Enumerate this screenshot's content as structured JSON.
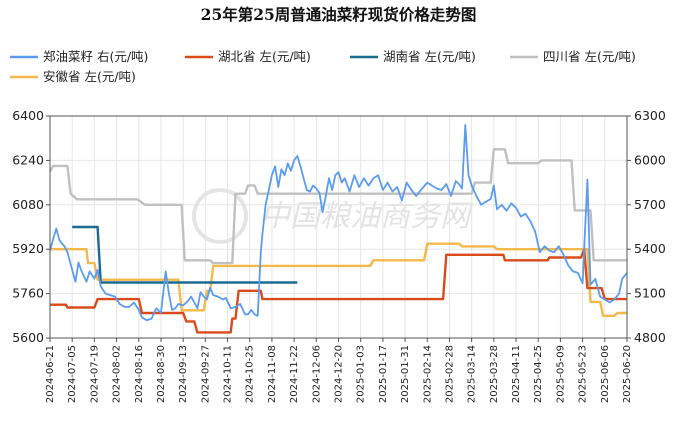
{
  "chart_data": {
    "type": "line",
    "title": "25年第25周普通油菜籽现货价格走势图",
    "watermark": "中国粮油商务网",
    "left_axis": {
      "ylim": [
        5600,
        6400
      ],
      "ticks": [
        "5600",
        "5760",
        "5920",
        "6080",
        "6240",
        "6400"
      ]
    },
    "right_axis": {
      "ylim": [
        4800,
        6300
      ],
      "ticks": [
        "4800",
        "5100",
        "5400",
        "5700",
        "6000",
        "6300"
      ]
    },
    "x_ticks": [
      "2024-06-21",
      "2024-07-05",
      "2024-07-19",
      "2024-08-02",
      "2024-08-16",
      "2024-08-30",
      "2024-09-13",
      "2024-09-27",
      "2024-10-11",
      "2024-10-25",
      "2024-11-08",
      "2024-11-22",
      "2024-12-06",
      "2024-12-20",
      "2025-01-03",
      "2025-01-17",
      "2025-01-31",
      "2025-02-14",
      "2025-02-28",
      "2025-03-14",
      "2025-03-28",
      "2025-04-11",
      "2025-04-25",
      "2025-05-09",
      "2025-05-23",
      "2025-06-06",
      "2025-06-20"
    ],
    "series": [
      {
        "name": "郑油菜籽 右(元/吨)",
        "axis": "right",
        "color": "#5b9bf0",
        "points": [
          [
            "2024-06-21",
            5390
          ],
          [
            "2024-06-23",
            5470
          ],
          [
            "2024-06-25",
            5540
          ],
          [
            "2024-06-27",
            5460
          ],
          [
            "2024-06-30",
            5420
          ],
          [
            "2024-07-02",
            5380
          ],
          [
            "2024-07-05",
            5260
          ],
          [
            "2024-07-07",
            5180
          ],
          [
            "2024-07-09",
            5310
          ],
          [
            "2024-07-11",
            5250
          ],
          [
            "2024-07-14",
            5180
          ],
          [
            "2024-07-16",
            5250
          ],
          [
            "2024-07-19",
            5200
          ],
          [
            "2024-07-21",
            5260
          ],
          [
            "2024-07-23",
            5150
          ],
          [
            "2024-07-26",
            5100
          ],
          [
            "2024-07-29",
            5090
          ],
          [
            "2024-08-01",
            5080
          ],
          [
            "2024-08-04",
            5030
          ],
          [
            "2024-08-07",
            5010
          ],
          [
            "2024-08-10",
            5010
          ],
          [
            "2024-08-13",
            5040
          ],
          [
            "2024-08-16",
            4990
          ],
          [
            "2024-08-18",
            4940
          ],
          [
            "2024-08-21",
            4920
          ],
          [
            "2024-08-24",
            4930
          ],
          [
            "2024-08-27",
            5000
          ],
          [
            "2024-08-30",
            4970
          ],
          [
            "2024-09-02",
            5250
          ],
          [
            "2024-09-04",
            5100
          ],
          [
            "2024-09-06",
            4990
          ],
          [
            "2024-09-08",
            5000
          ],
          [
            "2024-09-10",
            5030
          ],
          [
            "2024-09-13",
            5020
          ],
          [
            "2024-09-16",
            5050
          ],
          [
            "2024-09-18",
            5080
          ],
          [
            "2024-09-20",
            5040
          ],
          [
            "2024-09-22",
            5000
          ],
          [
            "2024-09-24",
            5110
          ],
          [
            "2024-09-26",
            5080
          ],
          [
            "2024-09-28",
            5060
          ],
          [
            "2024-09-30",
            5140
          ],
          [
            "2024-10-02",
            5090
          ],
          [
            "2024-10-05",
            5080
          ],
          [
            "2024-10-08",
            5060
          ],
          [
            "2024-10-10",
            5070
          ],
          [
            "2024-10-13",
            5000
          ],
          [
            "2024-10-16",
            5010
          ],
          [
            "2024-10-19",
            5030
          ],
          [
            "2024-10-22",
            4960
          ],
          [
            "2024-10-24",
            4960
          ],
          [
            "2024-10-26",
            4990
          ],
          [
            "2024-10-28",
            4960
          ],
          [
            "2024-10-30",
            4950
          ],
          [
            "2024-11-01",
            5380
          ],
          [
            "2024-11-02",
            5500
          ],
          [
            "2024-11-04",
            5700
          ],
          [
            "2024-11-06",
            5800
          ],
          [
            "2024-11-08",
            5900
          ],
          [
            "2024-11-10",
            5960
          ],
          [
            "2024-11-12",
            5820
          ],
          [
            "2024-11-14",
            5940
          ],
          [
            "2024-11-16",
            5900
          ],
          [
            "2024-11-18",
            5980
          ],
          [
            "2024-11-20",
            5930
          ],
          [
            "2024-11-22",
            6000
          ],
          [
            "2024-11-24",
            6030
          ],
          [
            "2024-11-26",
            5960
          ],
          [
            "2024-11-28",
            5880
          ],
          [
            "2024-11-30",
            5800
          ],
          [
            "2024-12-02",
            5790
          ],
          [
            "2024-12-04",
            5830
          ],
          [
            "2024-12-06",
            5810
          ],
          [
            "2024-12-08",
            5780
          ],
          [
            "2024-12-10",
            5650
          ],
          [
            "2024-12-12",
            5760
          ],
          [
            "2024-12-14",
            5880
          ],
          [
            "2024-12-16",
            5800
          ],
          [
            "2024-12-18",
            5900
          ],
          [
            "2024-12-20",
            5920
          ],
          [
            "2024-12-22",
            5850
          ],
          [
            "2024-12-24",
            5880
          ],
          [
            "2024-12-27",
            5790
          ],
          [
            "2024-12-30",
            5900
          ],
          [
            "2025-01-02",
            5820
          ],
          [
            "2025-01-05",
            5880
          ],
          [
            "2025-01-08",
            5830
          ],
          [
            "2025-01-11",
            5880
          ],
          [
            "2025-01-14",
            5900
          ],
          [
            "2025-01-17",
            5800
          ],
          [
            "2025-01-20",
            5850
          ],
          [
            "2025-01-23",
            5790
          ],
          [
            "2025-01-26",
            5820
          ],
          [
            "2025-01-29",
            5730
          ],
          [
            "2025-02-01",
            5850
          ],
          [
            "2025-02-04",
            5800
          ],
          [
            "2025-02-07",
            5760
          ],
          [
            "2025-02-10",
            5800
          ],
          [
            "2025-02-14",
            5850
          ],
          [
            "2025-02-17",
            5830
          ],
          [
            "2025-02-20",
            5810
          ],
          [
            "2025-02-23",
            5800
          ],
          [
            "2025-02-26",
            5840
          ],
          [
            "2025-03-01",
            5760
          ],
          [
            "2025-03-04",
            5860
          ],
          [
            "2025-03-06",
            5840
          ],
          [
            "2025-03-08",
            5810
          ],
          [
            "2025-03-10",
            6240
          ],
          [
            "2025-03-12",
            5900
          ],
          [
            "2025-03-14",
            5830
          ],
          [
            "2025-03-17",
            5760
          ],
          [
            "2025-03-20",
            5700
          ],
          [
            "2025-03-23",
            5720
          ],
          [
            "2025-03-26",
            5740
          ],
          [
            "2025-03-28",
            5830
          ],
          [
            "2025-03-30",
            5670
          ],
          [
            "2025-04-02",
            5700
          ],
          [
            "2025-04-05",
            5660
          ],
          [
            "2025-04-08",
            5710
          ],
          [
            "2025-04-11",
            5680
          ],
          [
            "2025-04-14",
            5620
          ],
          [
            "2025-04-17",
            5640
          ],
          [
            "2025-04-20",
            5590
          ],
          [
            "2025-04-23",
            5520
          ],
          [
            "2025-04-26",
            5380
          ],
          [
            "2025-04-29",
            5420
          ],
          [
            "2025-05-02",
            5390
          ],
          [
            "2025-05-05",
            5380
          ],
          [
            "2025-05-08",
            5420
          ],
          [
            "2025-05-11",
            5360
          ],
          [
            "2025-05-14",
            5290
          ],
          [
            "2025-05-17",
            5250
          ],
          [
            "2025-05-20",
            5240
          ],
          [
            "2025-05-23",
            5170
          ],
          [
            "2025-05-26",
            5870
          ],
          [
            "2025-05-28",
            5160
          ],
          [
            "2025-05-31",
            5200
          ],
          [
            "2025-06-03",
            5080
          ],
          [
            "2025-06-06",
            5060
          ],
          [
            "2025-06-09",
            5040
          ],
          [
            "2025-06-12",
            5060
          ],
          [
            "2025-06-15",
            5100
          ],
          [
            "2025-06-17",
            5200
          ],
          [
            "2025-06-20",
            5240
          ]
        ]
      },
      {
        "name": "湖北省 左(元/吨)",
        "axis": "left",
        "color": "#d94b1a",
        "points": [
          [
            "2024-06-21",
            5720
          ],
          [
            "2024-07-01",
            5720
          ],
          [
            "2024-07-02",
            5710
          ],
          [
            "2024-07-19",
            5710
          ],
          [
            "2024-07-21",
            5740
          ],
          [
            "2024-08-16",
            5740
          ],
          [
            "2024-08-18",
            5690
          ],
          [
            "2024-09-13",
            5690
          ],
          [
            "2024-09-15",
            5660
          ],
          [
            "2024-09-20",
            5660
          ],
          [
            "2024-09-22",
            5620
          ],
          [
            "2024-10-13",
            5620
          ],
          [
            "2024-10-14",
            5670
          ],
          [
            "2024-10-16",
            5670
          ],
          [
            "2024-10-18",
            5770
          ],
          [
            "2024-11-01",
            5770
          ],
          [
            "2024-11-02",
            5740
          ],
          [
            "2025-02-24",
            5740
          ],
          [
            "2025-02-26",
            5900
          ],
          [
            "2025-04-03",
            5900
          ],
          [
            "2025-04-04",
            5880
          ],
          [
            "2025-05-01",
            5880
          ],
          [
            "2025-05-02",
            5890
          ],
          [
            "2025-05-22",
            5890
          ],
          [
            "2025-05-24",
            5920
          ],
          [
            "2025-05-26",
            5780
          ],
          [
            "2025-06-04",
            5780
          ],
          [
            "2025-06-06",
            5740
          ],
          [
            "2025-06-20",
            5740
          ]
        ]
      },
      {
        "name": "湖南省 左(元/吨)",
        "axis": "left",
        "color": "#1c6a8f",
        "points": [
          [
            "2024-07-05",
            6000
          ],
          [
            "2024-07-21",
            6000
          ],
          [
            "2024-07-23",
            5800
          ],
          [
            "2024-11-24",
            5800
          ]
        ]
      },
      {
        "name": "四川省 左(元/吨)",
        "axis": "left",
        "color": "#c0c0c0",
        "points": [
          [
            "2024-06-21",
            6200
          ],
          [
            "2024-06-23",
            6220
          ],
          [
            "2024-07-02",
            6220
          ],
          [
            "2024-07-04",
            6120
          ],
          [
            "2024-07-08",
            6100
          ],
          [
            "2024-08-15",
            6100
          ],
          [
            "2024-08-20",
            6080
          ],
          [
            "2024-09-12",
            6080
          ],
          [
            "2024-09-14",
            5880
          ],
          [
            "2024-09-30",
            5880
          ],
          [
            "2024-10-02",
            5870
          ],
          [
            "2024-10-14",
            5870
          ],
          [
            "2024-10-16",
            6120
          ],
          [
            "2024-10-22",
            6120
          ],
          [
            "2024-10-24",
            6150
          ],
          [
            "2024-10-28",
            6150
          ],
          [
            "2024-10-30",
            6120
          ],
          [
            "2025-03-14",
            6120
          ],
          [
            "2025-03-16",
            6160
          ],
          [
            "2025-03-26",
            6160
          ],
          [
            "2025-03-28",
            6280
          ],
          [
            "2025-04-04",
            6280
          ],
          [
            "2025-04-06",
            6230
          ],
          [
            "2025-04-25",
            6230
          ],
          [
            "2025-04-27",
            6240
          ],
          [
            "2025-05-16",
            6240
          ],
          [
            "2025-05-18",
            6060
          ],
          [
            "2025-05-28",
            6060
          ],
          [
            "2025-05-30",
            5880
          ],
          [
            "2025-06-20",
            5880
          ]
        ]
      },
      {
        "name": "安徽省 左(元/吨)",
        "axis": "left",
        "color": "#f5b84a",
        "points": [
          [
            "2024-06-21",
            5920
          ],
          [
            "2024-07-14",
            5920
          ],
          [
            "2024-07-15",
            5870
          ],
          [
            "2024-07-19",
            5870
          ],
          [
            "2024-07-21",
            5810
          ],
          [
            "2024-09-10",
            5810
          ],
          [
            "2024-09-12",
            5700
          ],
          [
            "2024-09-26",
            5700
          ],
          [
            "2024-09-28",
            5770
          ],
          [
            "2024-09-30",
            5770
          ],
          [
            "2024-10-02",
            5860
          ],
          [
            "2024-12-19",
            5860
          ],
          [
            "2024-12-22",
            5860
          ],
          [
            "2025-01-09",
            5860
          ],
          [
            "2025-01-11",
            5880
          ],
          [
            "2025-02-12",
            5880
          ],
          [
            "2025-02-14",
            5940
          ],
          [
            "2025-03-06",
            5940
          ],
          [
            "2025-03-08",
            5930
          ],
          [
            "2025-03-28",
            5930
          ],
          [
            "2025-03-30",
            5920
          ],
          [
            "2025-05-26",
            5920
          ],
          [
            "2025-05-28",
            5730
          ],
          [
            "2025-06-03",
            5730
          ],
          [
            "2025-06-05",
            5680
          ],
          [
            "2025-06-12",
            5680
          ],
          [
            "2025-06-14",
            5690
          ],
          [
            "2025-06-20",
            5690
          ]
        ]
      }
    ]
  }
}
